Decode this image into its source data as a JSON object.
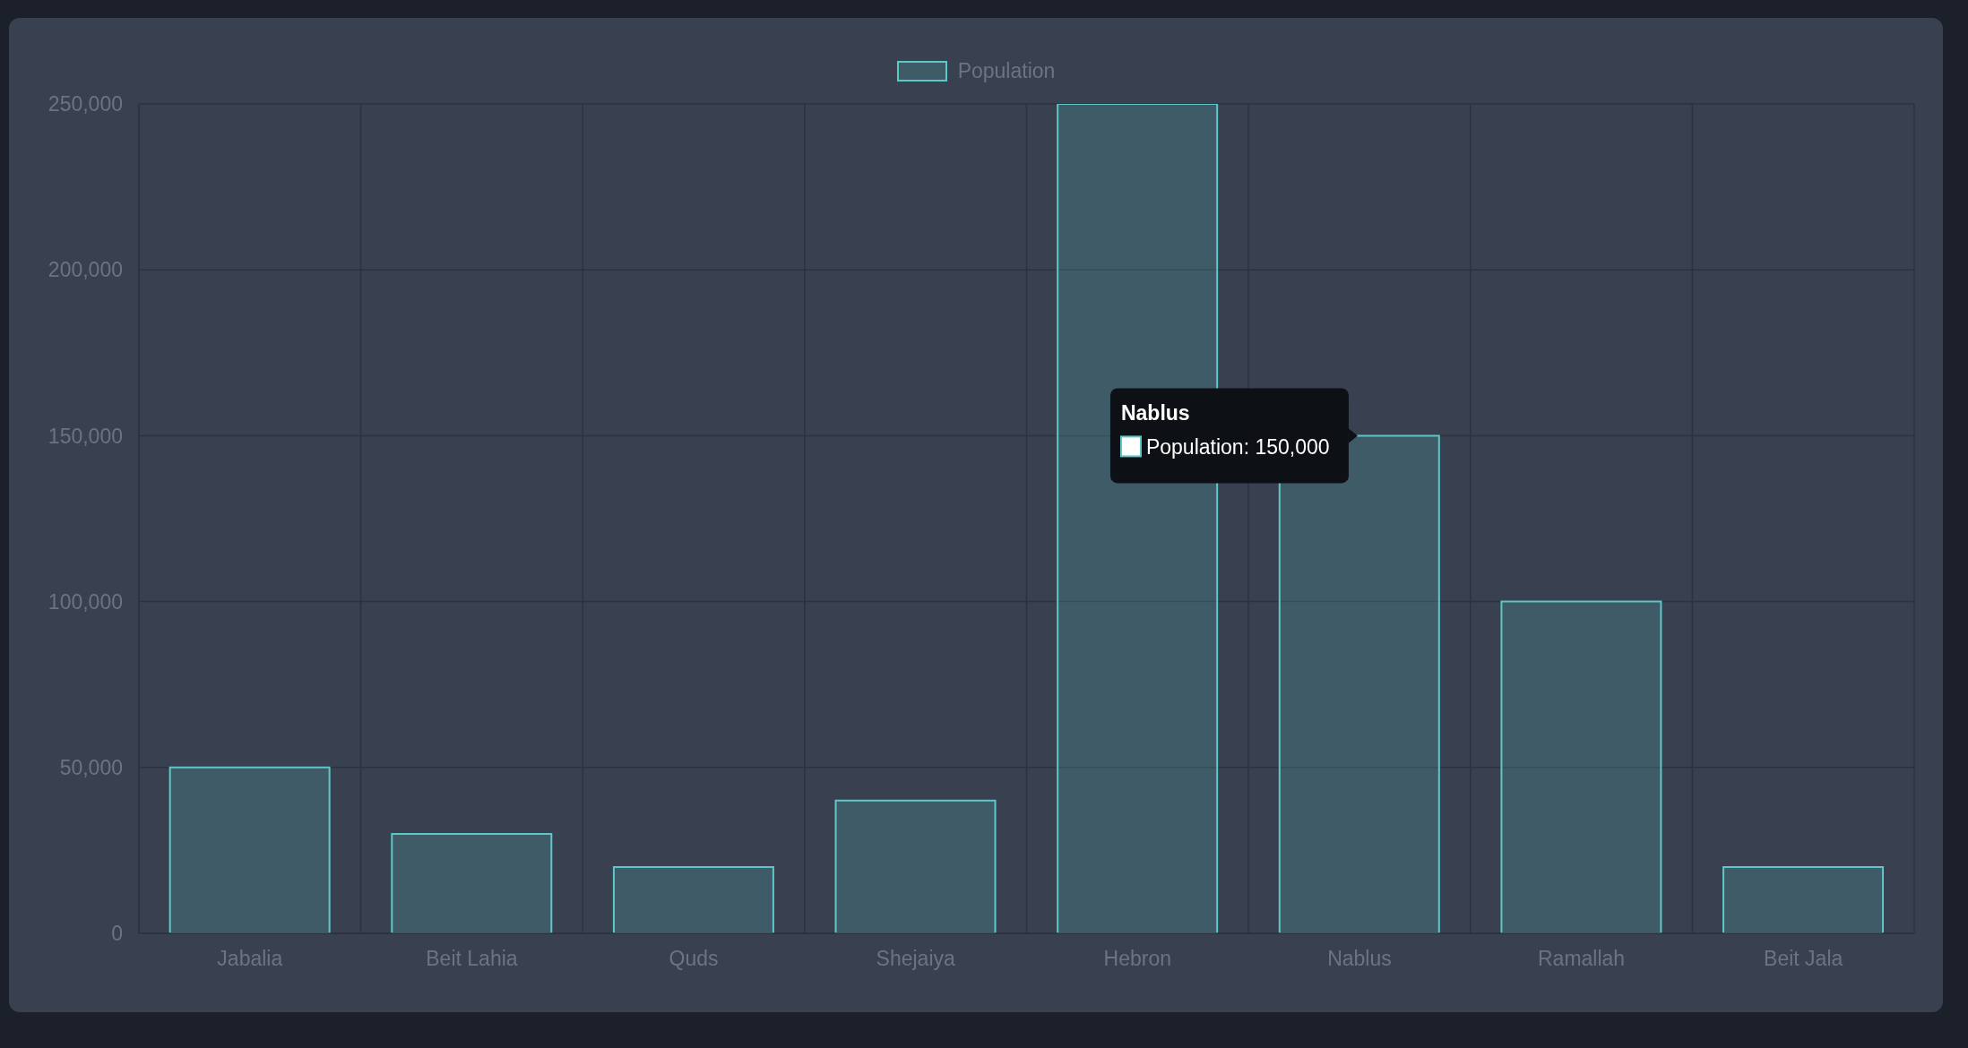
{
  "chart_data": {
    "type": "bar",
    "categories": [
      "Jabalia",
      "Beit Lahia",
      "Quds",
      "Shejaiya",
      "Hebron",
      "Nablus",
      "Ramallah",
      "Beit Jala"
    ],
    "series": [
      {
        "name": "Population",
        "color": "#5ec8c8",
        "values": [
          50000,
          30000,
          20000,
          40000,
          250000,
          150000,
          100000,
          20000
        ]
      }
    ],
    "ylim": [
      0,
      250000
    ],
    "yticks": [
      {
        "value": 0,
        "label": "0"
      },
      {
        "value": 50000,
        "label": "50,000"
      },
      {
        "value": 100000,
        "label": "100,000"
      },
      {
        "value": 150000,
        "label": "150,000"
      },
      {
        "value": 200000,
        "label": "200,000"
      },
      {
        "value": 250000,
        "label": "250,000"
      }
    ],
    "grid": true,
    "legend": "top",
    "annotations": [
      "Nablus",
      {
        "text": "Population: 150,000",
        "x": "Nablus",
        "y": 150000
      }
    ]
  }
}
